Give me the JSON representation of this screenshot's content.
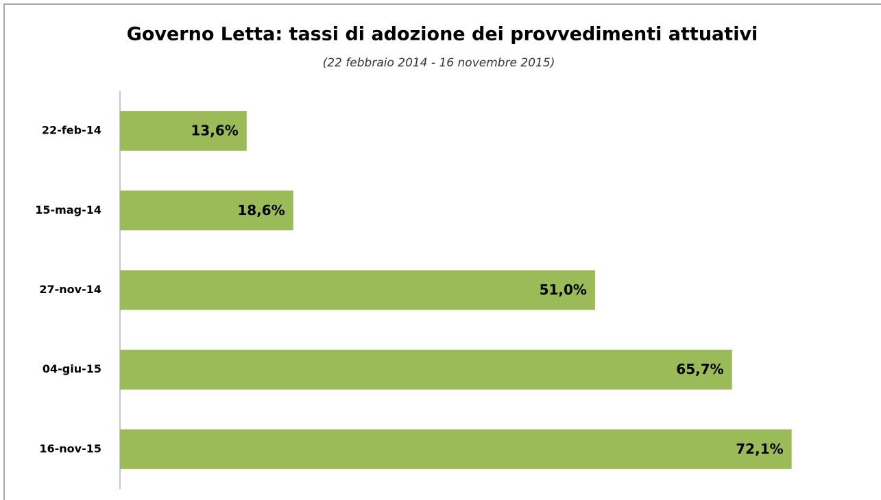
{
  "chart_data": {
    "type": "hbar",
    "title": "Governo Letta: tassi di adozione dei provvedimenti attuativi",
    "subtitle": "(22 febbraio 2014 - 16 novembre 2015)",
    "categories": [
      "22-feb-14",
      "15-mag-14",
      "27-nov-14",
      "04-giu-15",
      "16-nov-15"
    ],
    "values": [
      13.6,
      18.6,
      51.0,
      65.7,
      72.1
    ],
    "value_labels": [
      "13,6%",
      "18,6%",
      "51,0%",
      "65,7%",
      "72,1%"
    ],
    "color": "#9bbb59",
    "xlim": [
      0,
      80
    ]
  }
}
